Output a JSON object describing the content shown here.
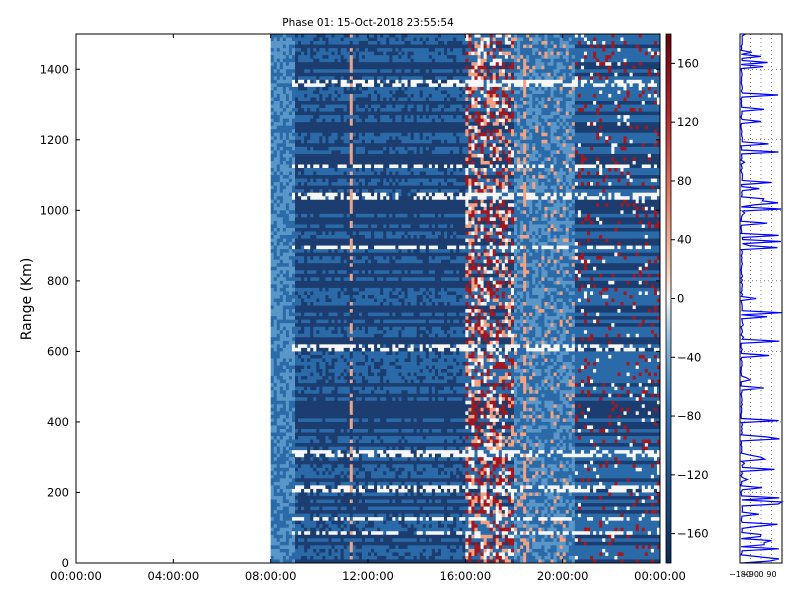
{
  "chart_data": [
    {
      "type": "heatmap",
      "title": "Phase 01: 15-Oct-2018 23:55:54",
      "ylabel": "Range (Km)",
      "xlabel": "",
      "xlim": [
        "00:00:00",
        "24:00:00"
      ],
      "ylim": [
        0,
        1500
      ],
      "x_ticks": [
        "00:00:00",
        "04:00:00",
        "08:00:00",
        "12:00:00",
        "16:00:00",
        "20:00:00",
        "00:00:00"
      ],
      "y_ticks": [
        "0",
        "200",
        "400",
        "600",
        "800",
        "1000",
        "1200",
        "1400"
      ],
      "data_start": "08:00:00",
      "data_end": "24:00:00",
      "colorbar": {
        "range": [
          -180,
          180
        ],
        "ticks": [
          "160",
          "120",
          "80",
          "40",
          "0",
          "−40",
          "−80",
          "−120",
          "−160"
        ],
        "colormap": "RdBu_r"
      },
      "grid": false
    },
    {
      "type": "line",
      "title": "",
      "x_ticks": [
        "−180",
        "−90",
        "0",
        "90"
      ],
      "xlim": [
        -180,
        180
      ],
      "ylim": [
        0,
        1500
      ],
      "grid": true,
      "series_color": "#0000ff"
    }
  ],
  "colors": {
    "dark_blue": "#1c3d70",
    "mid_blue": "#2b6aa8",
    "light_blue": "#5a97c8",
    "white": "#f7f7f7",
    "salmon": "#f0a283",
    "dark_red": "#a3171f",
    "trace_blue": "#0000ff"
  }
}
